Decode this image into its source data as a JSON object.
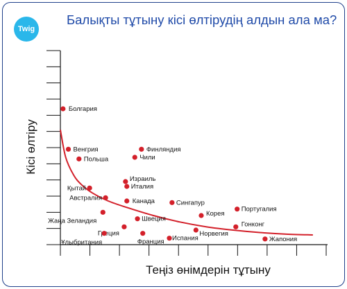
{
  "header": {
    "logo_text": "Twig",
    "title": "Балықты тұтыну кісі өлтірудің алдын ала ма?"
  },
  "colors": {
    "frame": "#1e3f8a",
    "title": "#1f4aa8",
    "logo": "#2ab7ea",
    "points": "#d3202a",
    "trend": "#d3202a",
    "axis": "#111111"
  },
  "chart_data": {
    "type": "scatter",
    "xlabel": "Теңіз өнімдерін тұтыну",
    "ylabel": "Кісі өлтіру",
    "xlim": [
      0,
      100
    ],
    "ylim": [
      0,
      12
    ],
    "y_ticks": 12,
    "x_ticks": 9,
    "grid": false,
    "points": [
      {
        "label": "Болгария",
        "x": 1,
        "y": 8.4
      },
      {
        "label": "Венгрия",
        "x": 3,
        "y": 5.9
      },
      {
        "label": "Польша",
        "x": 7,
        "y": 5.3
      },
      {
        "label": "Финляндия",
        "x": 30.5,
        "y": 5.9
      },
      {
        "label": "Чили",
        "x": 28,
        "y": 5.4
      },
      {
        "label": "Израиль",
        "x": 24.5,
        "y": 3.9
      },
      {
        "label": "Италия",
        "x": 25,
        "y": 3.6
      },
      {
        "label": "Қытай",
        "x": 11,
        "y": 3.5
      },
      {
        "label": "Австралия",
        "x": 17,
        "y": 2.9
      },
      {
        "label": "Канада",
        "x": 25,
        "y": 2.7
      },
      {
        "label": "Сингапур",
        "x": 42,
        "y": 2.6
      },
      {
        "label": "Португалия",
        "x": 66.5,
        "y": 2.2
      },
      {
        "label": "Корея",
        "x": 53,
        "y": 1.8
      },
      {
        "label": "Жаңа Зеландия",
        "x": 16,
        "y": 2.0
      },
      {
        "label": "Швеция",
        "x": 29,
        "y": 1.6
      },
      {
        "label": "Гонконг",
        "x": 66,
        "y": 1.1
      },
      {
        "label": "Греция",
        "x": 24,
        "y": 1.1
      },
      {
        "label": "Норвегия",
        "x": 51,
        "y": 0.9
      },
      {
        "label": "Ұлыбритания",
        "x": 16.5,
        "y": 0.7
      },
      {
        "label": "Франция",
        "x": 31,
        "y": 0.7
      },
      {
        "label": "Испания",
        "x": 41,
        "y": 0.4
      },
      {
        "label": "Жапония",
        "x": 77,
        "y": 0.35
      }
    ],
    "trend": {
      "type": "curve",
      "x": [
        0,
        2,
        5,
        8,
        12,
        18,
        25,
        35,
        45,
        55,
        65,
        75,
        85,
        95
      ],
      "y": [
        7.1,
        5.4,
        4.3,
        3.7,
        3.2,
        2.7,
        2.3,
        1.8,
        1.4,
        1.1,
        0.9,
        0.75,
        0.65,
        0.6
      ]
    }
  }
}
